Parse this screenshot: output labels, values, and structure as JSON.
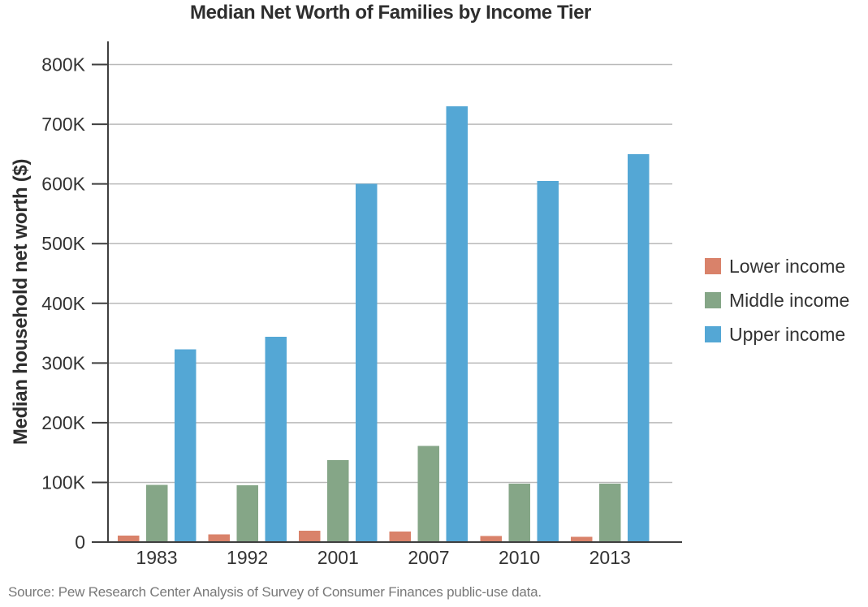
{
  "title": "Median Net Worth of Families by Income Tier",
  "source": "Source: Pew Research Center Analysis of Survey of Consumer Finances public-use data.",
  "colors": {
    "title_text": "#2e2e2e",
    "tick_text": "#333333",
    "axis": "#3f3f3f",
    "gridline": "#b9b9b9",
    "background": "#ffffff",
    "source_text": "#787878"
  },
  "chart_data": {
    "type": "bar",
    "title": "Median Net Worth of Families by Income Tier",
    "xlabel": "",
    "ylabel": "Median household net worth ($)",
    "categories": [
      "1983",
      "1992",
      "2001",
      "2007",
      "2010",
      "2013"
    ],
    "series": [
      {
        "name": "Lower income",
        "color": "#d9826a",
        "values": [
          11000,
          13000,
          19000,
          18000,
          10000,
          9000
        ]
      },
      {
        "name": "Middle income",
        "color": "#85a687",
        "values": [
          96000,
          95000,
          137000,
          161000,
          98000,
          98000
        ]
      },
      {
        "name": "Upper income",
        "color": "#54a7d5",
        "values": [
          323000,
          344000,
          600000,
          730000,
          605000,
          650000
        ]
      }
    ],
    "ylim": [
      0,
      800000
    ],
    "y_tick_labels": [
      "0",
      "100K",
      "200K",
      "300K",
      "400K",
      "500K",
      "600K",
      "700K",
      "800K"
    ],
    "y_tick_values": [
      0,
      100000,
      200000,
      300000,
      400000,
      500000,
      600000,
      700000,
      800000
    ],
    "grid": "horizontal",
    "legend_position": "right"
  }
}
